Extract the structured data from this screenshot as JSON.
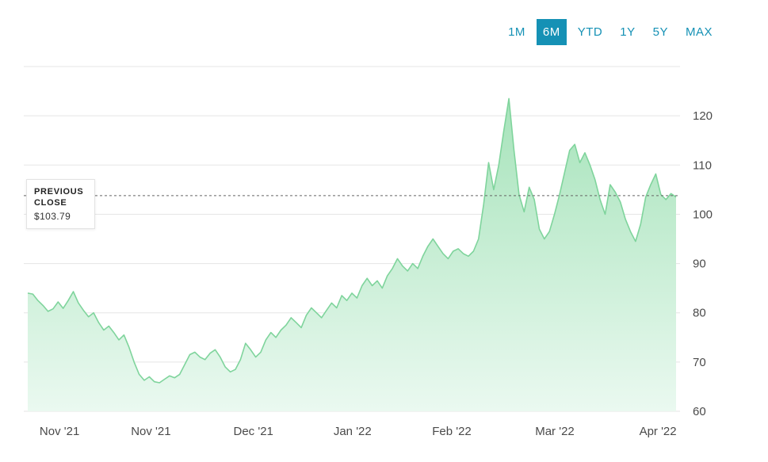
{
  "toolbar": {
    "ranges": [
      {
        "label": "1M"
      },
      {
        "label": "6M"
      },
      {
        "label": "YTD"
      },
      {
        "label": "1Y"
      },
      {
        "label": "5Y"
      },
      {
        "label": "MAX"
      }
    ],
    "selected": "6M"
  },
  "previous_close": {
    "label": "PREVIOUS CLOSE",
    "value_text": "$103.79",
    "value": 103.79
  },
  "colors": {
    "accent_teal": "#1591b5",
    "line_green": "#7fd49c",
    "area_top": "#a6e3ba",
    "area_bottom": "#eaf9f0",
    "grid": "#e5e5e5",
    "axis_text": "#4a4a4a",
    "dotted_line": "#666666"
  },
  "chart_data": {
    "type": "area",
    "title": "",
    "xlabel": "",
    "ylabel": "",
    "x_tick_labels": [
      "Nov '21",
      "Nov '21",
      "Dec '21",
      "Jan '22",
      "Feb '22",
      "Mar '22",
      "Apr '22"
    ],
    "x_tick_positions": [
      0.049,
      0.19,
      0.348,
      0.501,
      0.654,
      0.813,
      0.972
    ],
    "y_ticks": [
      60,
      70,
      80,
      90,
      100,
      110,
      120
    ],
    "ylim": [
      60,
      130
    ],
    "grid": "horizontal",
    "legend": "none",
    "previous_close": 103.79,
    "values": [
      84.0,
      83.8,
      82.5,
      81.5,
      80.3,
      80.8,
      82.2,
      80.9,
      82.5,
      84.3,
      82.0,
      80.5,
      79.2,
      80.0,
      78.0,
      76.5,
      77.3,
      76.0,
      74.5,
      75.5,
      73.0,
      70.0,
      67.5,
      66.3,
      67.0,
      66.0,
      65.8,
      66.5,
      67.2,
      66.8,
      67.5,
      69.5,
      71.5,
      72.0,
      71.0,
      70.5,
      71.8,
      72.5,
      71.0,
      69.0,
      68.0,
      68.5,
      70.5,
      73.8,
      72.5,
      71.0,
      72.0,
      74.5,
      76.0,
      75.0,
      76.5,
      77.5,
      79.0,
      78.0,
      77.0,
      79.5,
      81.0,
      80.0,
      79.0,
      80.5,
      82.0,
      81.0,
      83.5,
      82.5,
      84.0,
      83.0,
      85.5,
      87.0,
      85.5,
      86.5,
      85.0,
      87.5,
      89.0,
      91.0,
      89.5,
      88.5,
      90.0,
      89.0,
      91.5,
      93.5,
      95.0,
      93.5,
      92.0,
      91.0,
      92.5,
      93.0,
      92.0,
      91.5,
      92.5,
      95.0,
      102.0,
      110.5,
      105.0,
      110.0,
      117.0,
      123.5,
      113.0,
      104.0,
      100.5,
      105.5,
      103.0,
      97.0,
      95.0,
      96.5,
      100.0,
      104.0,
      108.5,
      113.0,
      114.2,
      110.5,
      112.5,
      110.0,
      107.0,
      103.0,
      100.0,
      106.0,
      104.5,
      102.5,
      99.0,
      96.5,
      94.5,
      98.0,
      103.5,
      106.0,
      108.2,
      104.0,
      103.0,
      104.2,
      103.5
    ]
  }
}
